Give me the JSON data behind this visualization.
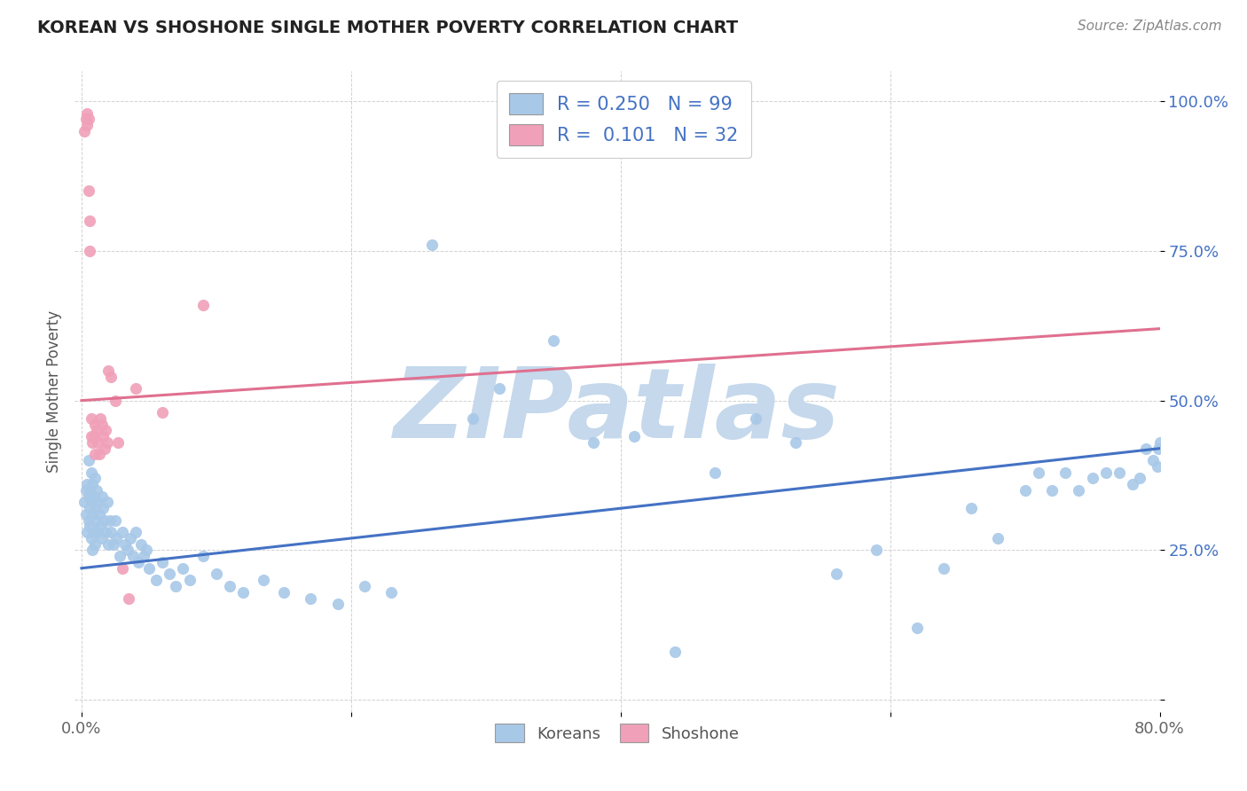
{
  "title": "KOREAN VS SHOSHONE SINGLE MOTHER POVERTY CORRELATION CHART",
  "source": "Source: ZipAtlas.com",
  "ylabel": "Single Mother Poverty",
  "xlim": [
    -0.005,
    0.8
  ],
  "ylim": [
    -0.02,
    1.05
  ],
  "korean_color": "#a8c8e8",
  "shoshone_color": "#f0a0b8",
  "korean_line_color": "#4472c4",
  "shoshone_line_color": "#e07090",
  "R_korean": 0.25,
  "N_korean": 99,
  "R_shoshone": 0.101,
  "N_shoshone": 32,
  "watermark": "ZIPatlas",
  "watermark_color": "#c5d8ec",
  "background_color": "#ffffff",
  "korean_line_y0": 0.22,
  "korean_line_y1": 0.42,
  "shoshone_line_y0": 0.5,
  "shoshone_line_y1": 0.62,
  "korean_x": [
    0.002,
    0.003,
    0.003,
    0.004,
    0.004,
    0.005,
    0.005,
    0.005,
    0.006,
    0.006,
    0.006,
    0.007,
    0.007,
    0.007,
    0.008,
    0.008,
    0.008,
    0.009,
    0.009,
    0.01,
    0.01,
    0.01,
    0.011,
    0.011,
    0.012,
    0.012,
    0.013,
    0.014,
    0.015,
    0.015,
    0.016,
    0.017,
    0.018,
    0.019,
    0.02,
    0.021,
    0.022,
    0.024,
    0.025,
    0.026,
    0.028,
    0.03,
    0.032,
    0.034,
    0.036,
    0.038,
    0.04,
    0.042,
    0.044,
    0.046,
    0.048,
    0.05,
    0.055,
    0.06,
    0.065,
    0.07,
    0.075,
    0.08,
    0.09,
    0.1,
    0.11,
    0.12,
    0.135,
    0.15,
    0.17,
    0.19,
    0.21,
    0.23,
    0.26,
    0.29,
    0.31,
    0.35,
    0.38,
    0.41,
    0.44,
    0.47,
    0.5,
    0.53,
    0.56,
    0.59,
    0.62,
    0.64,
    0.66,
    0.68,
    0.7,
    0.71,
    0.72,
    0.73,
    0.74,
    0.75,
    0.76,
    0.77,
    0.78,
    0.785,
    0.79,
    0.795,
    0.798,
    0.799,
    0.8
  ],
  "korean_y": [
    0.33,
    0.35,
    0.31,
    0.28,
    0.36,
    0.3,
    0.34,
    0.4,
    0.32,
    0.35,
    0.29,
    0.38,
    0.33,
    0.27,
    0.36,
    0.31,
    0.25,
    0.34,
    0.28,
    0.37,
    0.32,
    0.26,
    0.35,
    0.3,
    0.33,
    0.28,
    0.31,
    0.29,
    0.34,
    0.27,
    0.32,
    0.3,
    0.28,
    0.33,
    0.26,
    0.3,
    0.28,
    0.26,
    0.3,
    0.27,
    0.24,
    0.28,
    0.26,
    0.25,
    0.27,
    0.24,
    0.28,
    0.23,
    0.26,
    0.24,
    0.25,
    0.22,
    0.2,
    0.23,
    0.21,
    0.19,
    0.22,
    0.2,
    0.24,
    0.21,
    0.19,
    0.18,
    0.2,
    0.18,
    0.17,
    0.16,
    0.19,
    0.18,
    0.76,
    0.47,
    0.52,
    0.6,
    0.43,
    0.44,
    0.08,
    0.38,
    0.47,
    0.43,
    0.21,
    0.25,
    0.12,
    0.22,
    0.32,
    0.27,
    0.35,
    0.38,
    0.35,
    0.38,
    0.35,
    0.37,
    0.38,
    0.38,
    0.36,
    0.37,
    0.42,
    0.4,
    0.39,
    0.42,
    0.43
  ],
  "shoshone_x": [
    0.002,
    0.003,
    0.004,
    0.004,
    0.005,
    0.005,
    0.006,
    0.006,
    0.007,
    0.007,
    0.008,
    0.009,
    0.01,
    0.01,
    0.011,
    0.012,
    0.013,
    0.014,
    0.015,
    0.016,
    0.017,
    0.018,
    0.019,
    0.02,
    0.022,
    0.025,
    0.027,
    0.03,
    0.035,
    0.04,
    0.06,
    0.09
  ],
  "shoshone_y": [
    0.95,
    0.97,
    0.98,
    0.96,
    0.97,
    0.85,
    0.8,
    0.75,
    0.47,
    0.44,
    0.43,
    0.44,
    0.41,
    0.46,
    0.45,
    0.43,
    0.41,
    0.47,
    0.46,
    0.44,
    0.42,
    0.45,
    0.43,
    0.55,
    0.54,
    0.5,
    0.43,
    0.22,
    0.17,
    0.52,
    0.48,
    0.66
  ]
}
